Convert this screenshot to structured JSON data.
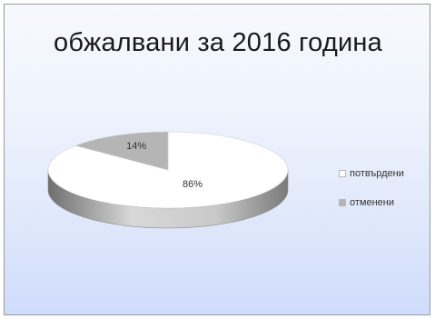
{
  "chart_data": {
    "type": "pie",
    "title": "обжалвани за 2016 година",
    "slices": [
      {
        "label": "потвърдени",
        "value": 86,
        "data_label": "86%",
        "color": "#ffffff"
      },
      {
        "label": "отменени",
        "value": 14,
        "data_label": "14%",
        "color": "#b5b5b5"
      }
    ],
    "legend_position": "right",
    "style": "3d"
  },
  "colors": {
    "background_top": "#f7f9fe",
    "background_bottom": "#cfdcfb",
    "side_light": "#d9d9d9",
    "side_dark": "#8a8a8a"
  }
}
